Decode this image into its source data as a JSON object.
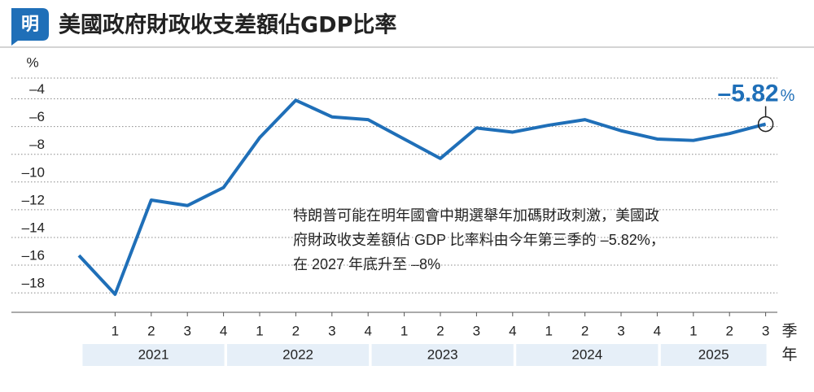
{
  "brand": "明",
  "chart_data": {
    "type": "line",
    "title": "美國政府財政收支差額佔GDP比率",
    "y_unit": "%",
    "x_unit_quarter": "季",
    "x_unit_year": "年",
    "categories": [
      null,
      "1",
      "2",
      "3",
      "4",
      "1",
      "2",
      "3",
      "4",
      "1",
      "2",
      "3",
      "4",
      "1",
      "2",
      "3",
      "4",
      "1",
      "2",
      "3"
    ],
    "x_groups": [
      {
        "label": "2021",
        "start": 1,
        "end": 4
      },
      {
        "label": "2022",
        "start": 5,
        "end": 8
      },
      {
        "label": "2023",
        "start": 9,
        "end": 12
      },
      {
        "label": "2024",
        "start": 13,
        "end": 16
      },
      {
        "label": "2025",
        "start": 17,
        "end": 19
      }
    ],
    "series": [
      {
        "name": "財政收支差額佔GDP比率",
        "color": "#1f6fb8",
        "values": [
          -15.3,
          -18.1,
          -11.3,
          -11.7,
          -10.4,
          -6.8,
          -4.1,
          -5.3,
          -5.5,
          -6.9,
          -8.3,
          -6.1,
          -6.4,
          -5.9,
          -5.5,
          -6.3,
          -6.9,
          -7.0,
          -6.5,
          -5.82
        ],
        "value_labels": [
          null,
          null,
          null,
          null,
          null,
          null,
          null,
          null,
          null,
          null,
          null,
          null,
          null,
          null,
          null,
          null,
          null,
          null,
          null,
          "–5.82"
        ]
      }
    ],
    "ylim": [
      -19.4,
      -2.5
    ],
    "yticks": [
      {
        "value": -4,
        "label": "–4"
      },
      {
        "value": -6,
        "label": "–6"
      },
      {
        "value": -8,
        "label": "–8"
      },
      {
        "value": -10,
        "label": "–10"
      },
      {
        "value": -12,
        "label": "–12"
      },
      {
        "value": -14,
        "label": "–14"
      },
      {
        "value": -16,
        "label": "–16"
      },
      {
        "value": -18,
        "label": "–18"
      }
    ],
    "grid": true,
    "annotation": [
      "特朗普可能在明年國會中期選舉年加碼財政刺激，美國政",
      "府財政收支差額佔 GDP 比率料由今年第三季的 –5.82%，",
      "在 2027 年底升至 –8%"
    ]
  }
}
